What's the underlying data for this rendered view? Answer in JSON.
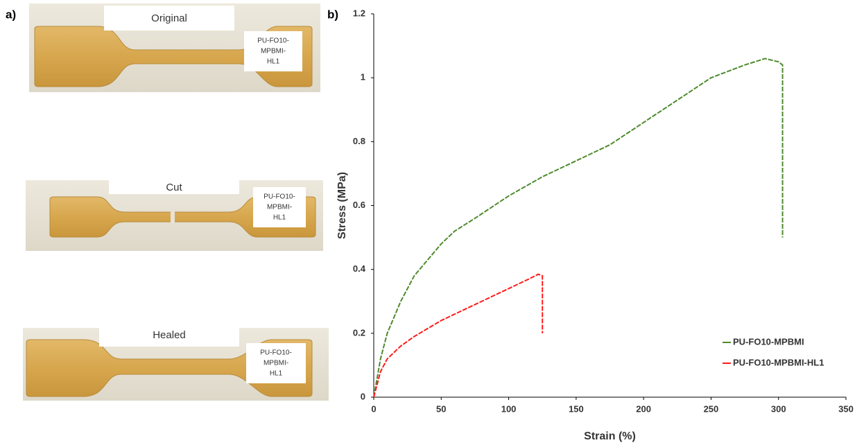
{
  "panel_labels": [
    "a)",
    "b)"
  ],
  "photos": [
    {
      "label": "Original",
      "sample_label": [
        "PU-FO10-",
        "MPBMI-",
        "HL1"
      ]
    },
    {
      "label": "Cut",
      "sample_label": [
        "PU-FO10-",
        "MPBMI-",
        "HL1"
      ]
    },
    {
      "label": "Healed",
      "sample_label": [
        "PU-FO10-",
        "MPBMI-",
        "HL1"
      ]
    }
  ],
  "chart_data": {
    "type": "line",
    "x_label": "Strain (%)",
    "y_label": "Stress (MPa)",
    "xlim": [
      0,
      350
    ],
    "xticks": [
      0,
      50,
      100,
      150,
      200,
      250,
      300,
      350
    ],
    "ylim": [
      0,
      1.2
    ],
    "yticks": [
      0,
      0.2,
      0.4,
      0.6,
      0.8,
      1,
      1.2
    ],
    "legend": "lower right",
    "series": [
      {
        "name": "PU-FO10-MPBMI",
        "color": "#4e8a2e",
        "x": [
          0,
          5,
          10,
          20,
          30,
          40,
          50,
          60,
          75,
          100,
          125,
          150,
          175,
          200,
          225,
          250,
          275,
          290,
          300,
          303,
          303
        ],
        "values": [
          0,
          0.12,
          0.2,
          0.3,
          0.38,
          0.43,
          0.48,
          0.52,
          0.56,
          0.63,
          0.69,
          0.74,
          0.79,
          0.86,
          0.93,
          1.0,
          1.04,
          1.06,
          1.05,
          1.04,
          0.5
        ]
      },
      {
        "name": "PU-FO10-MPBMI-HL1",
        "color": "#ff1a1a",
        "x": [
          0,
          5,
          10,
          20,
          30,
          50,
          75,
          100,
          115,
          122,
          125,
          125
        ],
        "values": [
          0,
          0.08,
          0.12,
          0.16,
          0.19,
          0.24,
          0.29,
          0.34,
          0.37,
          0.385,
          0.38,
          0.2
        ]
      }
    ]
  }
}
